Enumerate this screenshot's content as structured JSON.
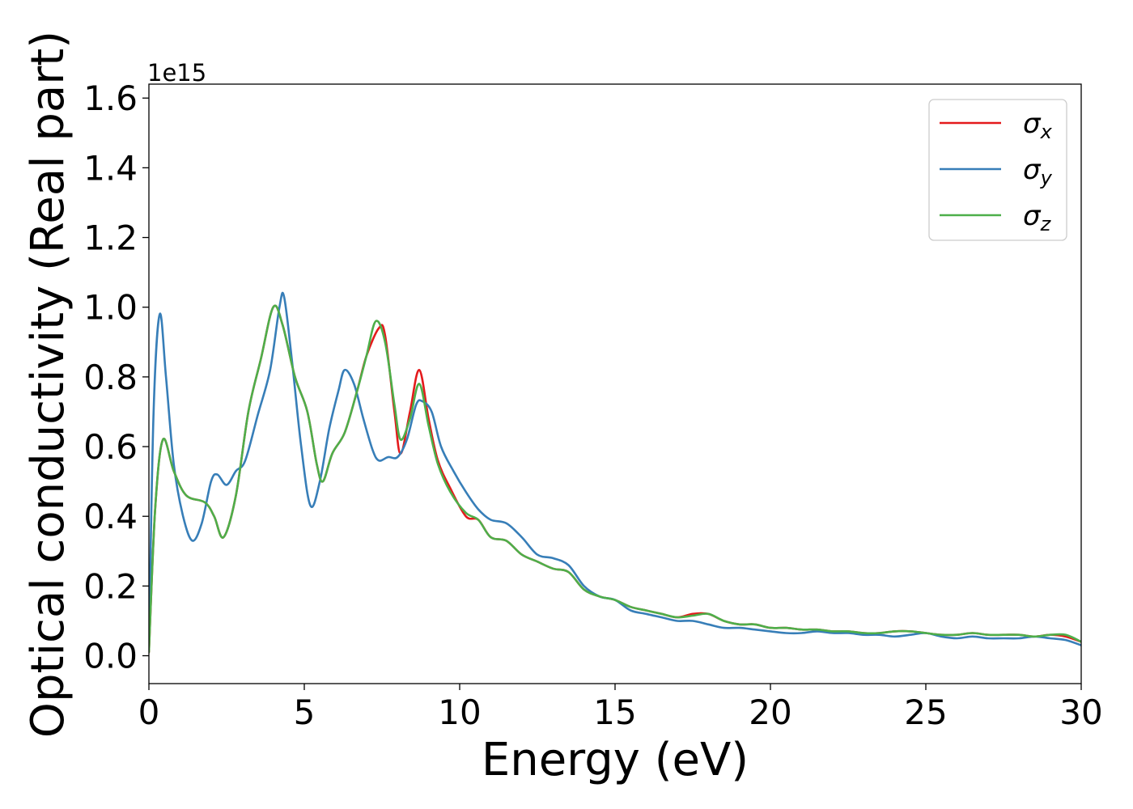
{
  "chart_data": {
    "type": "line",
    "xlabel": "Energy (eV)",
    "ylabel": "Optical conductivity (Real part)",
    "y_offset_label": "1e15",
    "xlim": [
      0,
      30
    ],
    "ylim": [
      -0.08,
      1.64
    ],
    "x_ticks": [
      0,
      5,
      10,
      15,
      20,
      25,
      30
    ],
    "x_tick_labels": [
      "0",
      "5",
      "10",
      "15",
      "20",
      "25",
      "30"
    ],
    "y_ticks": [
      0.0,
      0.2,
      0.4,
      0.6,
      0.8,
      1.0,
      1.2,
      1.4,
      1.6
    ],
    "y_tick_labels": [
      "0.0",
      "0.2",
      "0.4",
      "0.6",
      "0.8",
      "1.0",
      "1.2",
      "1.4",
      "1.6"
    ],
    "grid": false,
    "legend_position": "top-right",
    "series": [
      {
        "name": "σx",
        "color": "#e41a1c",
        "x": [
          0,
          0.2,
          0.45,
          0.8,
          1.2,
          1.8,
          2.1,
          2.4,
          2.8,
          3.2,
          3.6,
          4.0,
          4.3,
          4.7,
          5.1,
          5.4,
          5.6,
          5.9,
          6.3,
          6.7,
          7.0,
          7.4,
          7.6,
          7.9,
          8.1,
          8.4,
          8.7,
          9.0,
          9.3,
          9.7,
          10.2,
          10.6,
          11.0,
          11.5,
          12.0,
          12.5,
          13.0,
          13.5,
          14.0,
          14.5,
          15.0,
          15.5,
          16.0,
          16.5,
          17.0,
          17.5,
          18.0,
          18.5,
          19.0,
          19.5,
          20.0,
          20.5,
          21.0,
          21.5,
          22.0,
          22.5,
          23.0,
          23.5,
          24.0,
          24.5,
          25.0,
          25.5,
          26.0,
          26.5,
          27.0,
          27.5,
          28.0,
          28.5,
          29.0,
          29.5,
          30.0
        ],
        "y": [
          0.01,
          0.42,
          0.62,
          0.53,
          0.46,
          0.44,
          0.4,
          0.34,
          0.46,
          0.7,
          0.85,
          1.0,
          0.95,
          0.8,
          0.7,
          0.55,
          0.5,
          0.58,
          0.64,
          0.76,
          0.86,
          0.94,
          0.92,
          0.7,
          0.58,
          0.7,
          0.82,
          0.68,
          0.56,
          0.48,
          0.4,
          0.39,
          0.34,
          0.33,
          0.29,
          0.27,
          0.25,
          0.24,
          0.19,
          0.17,
          0.16,
          0.14,
          0.13,
          0.12,
          0.11,
          0.12,
          0.12,
          0.1,
          0.09,
          0.09,
          0.08,
          0.08,
          0.075,
          0.075,
          0.07,
          0.07,
          0.065,
          0.065,
          0.07,
          0.07,
          0.065,
          0.06,
          0.06,
          0.065,
          0.06,
          0.06,
          0.06,
          0.055,
          0.06,
          0.055,
          0.04
        ]
      },
      {
        "name": "σy",
        "color": "#377eb8",
        "x": [
          0,
          0.15,
          0.35,
          0.55,
          0.8,
          1.1,
          1.4,
          1.7,
          2.0,
          2.2,
          2.5,
          2.8,
          3.1,
          3.5,
          3.9,
          4.2,
          4.35,
          4.6,
          4.9,
          5.2,
          5.5,
          5.8,
          6.1,
          6.3,
          6.6,
          6.9,
          7.2,
          7.4,
          7.7,
          8.0,
          8.3,
          8.6,
          8.8,
          9.1,
          9.4,
          9.8,
          10.2,
          10.6,
          11.0,
          11.5,
          12.0,
          12.5,
          13.0,
          13.5,
          14.0,
          14.5,
          15.0,
          15.5,
          16.0,
          16.5,
          17.0,
          17.5,
          18.0,
          18.5,
          19.0,
          19.5,
          20.0,
          20.5,
          21.0,
          21.5,
          22.0,
          22.5,
          23.0,
          23.5,
          24.0,
          24.5,
          25.0,
          25.5,
          26.0,
          26.5,
          27.0,
          27.5,
          28.0,
          28.5,
          29.0,
          29.5,
          30.0
        ],
        "y": [
          0.02,
          0.7,
          0.98,
          0.8,
          0.55,
          0.4,
          0.33,
          0.38,
          0.5,
          0.52,
          0.49,
          0.53,
          0.56,
          0.69,
          0.82,
          1.0,
          1.03,
          0.85,
          0.6,
          0.43,
          0.5,
          0.65,
          0.76,
          0.82,
          0.78,
          0.68,
          0.59,
          0.56,
          0.57,
          0.57,
          0.62,
          0.72,
          0.73,
          0.7,
          0.6,
          0.53,
          0.47,
          0.42,
          0.39,
          0.38,
          0.34,
          0.29,
          0.28,
          0.26,
          0.2,
          0.17,
          0.16,
          0.13,
          0.12,
          0.11,
          0.1,
          0.1,
          0.09,
          0.08,
          0.08,
          0.075,
          0.07,
          0.065,
          0.065,
          0.07,
          0.065,
          0.065,
          0.06,
          0.06,
          0.055,
          0.06,
          0.065,
          0.055,
          0.05,
          0.055,
          0.05,
          0.05,
          0.05,
          0.055,
          0.05,
          0.045,
          0.03
        ]
      },
      {
        "name": "σz",
        "color": "#4daf4a",
        "x": [
          0,
          0.2,
          0.45,
          0.8,
          1.2,
          1.8,
          2.1,
          2.4,
          2.8,
          3.2,
          3.6,
          4.0,
          4.3,
          4.7,
          5.1,
          5.4,
          5.6,
          5.9,
          6.3,
          6.7,
          7.0,
          7.3,
          7.6,
          7.9,
          8.1,
          8.4,
          8.7,
          9.0,
          9.3,
          9.7,
          10.2,
          10.6,
          11.0,
          11.5,
          12.0,
          12.5,
          13.0,
          13.5,
          14.0,
          14.5,
          15.0,
          15.5,
          16.0,
          16.5,
          17.0,
          17.5,
          18.0,
          18.5,
          19.0,
          19.5,
          20.0,
          20.5,
          21.0,
          21.5,
          22.0,
          22.5,
          23.0,
          23.5,
          24.0,
          24.5,
          25.0,
          25.5,
          26.0,
          26.5,
          27.0,
          27.5,
          28.0,
          28.5,
          29.0,
          29.5,
          30.0
        ],
        "y": [
          0.01,
          0.42,
          0.62,
          0.53,
          0.46,
          0.44,
          0.4,
          0.34,
          0.46,
          0.7,
          0.85,
          1.0,
          0.95,
          0.8,
          0.7,
          0.55,
          0.5,
          0.58,
          0.64,
          0.76,
          0.86,
          0.96,
          0.9,
          0.72,
          0.62,
          0.68,
          0.78,
          0.66,
          0.55,
          0.47,
          0.41,
          0.39,
          0.34,
          0.33,
          0.29,
          0.27,
          0.25,
          0.24,
          0.19,
          0.17,
          0.16,
          0.14,
          0.13,
          0.12,
          0.11,
          0.115,
          0.12,
          0.1,
          0.09,
          0.09,
          0.08,
          0.08,
          0.075,
          0.075,
          0.07,
          0.07,
          0.065,
          0.065,
          0.07,
          0.07,
          0.065,
          0.06,
          0.06,
          0.065,
          0.06,
          0.06,
          0.06,
          0.055,
          0.06,
          0.06,
          0.04
        ]
      }
    ]
  }
}
